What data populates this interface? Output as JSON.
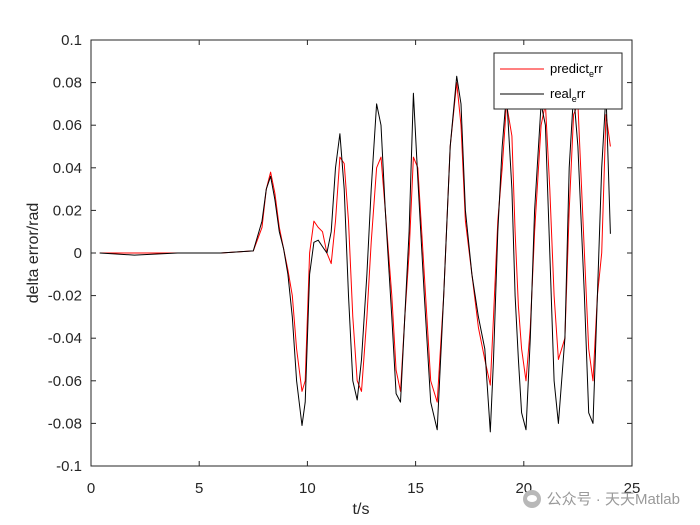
{
  "chart_data": {
    "type": "line",
    "xlabel": "t/s",
    "ylabel": "delta error/rad",
    "xlim": [
      0,
      25
    ],
    "ylim": [
      -0.1,
      0.1
    ],
    "xticks": [
      0,
      5,
      10,
      15,
      20,
      25
    ],
    "yticks": [
      -0.1,
      -0.08,
      -0.06,
      -0.04,
      -0.02,
      0,
      0.02,
      0.04,
      0.06,
      0.08,
      0.1
    ],
    "grid": false,
    "legend_position": "top-right",
    "series": [
      {
        "name_main": "predict",
        "name_sub": "e",
        "name_tail": "rr",
        "color": "#ff0000",
        "x": [
          0.4,
          2,
          4,
          6,
          7.5,
          7.9,
          8.1,
          8.3,
          8.5,
          8.7,
          8.9,
          9.1,
          9.3,
          9.5,
          9.75,
          9.9,
          10.1,
          10.3,
          10.5,
          10.7,
          10.9,
          11.1,
          11.3,
          11.5,
          11.7,
          11.9,
          12.1,
          12.3,
          12.5,
          12.75,
          12.95,
          13.2,
          13.4,
          13.6,
          13.9,
          14.1,
          14.3,
          14.5,
          14.7,
          14.9,
          15.1,
          15.4,
          15.7,
          16.0,
          16.3,
          16.6,
          16.9,
          17.1,
          17.3,
          17.6,
          17.9,
          18.2,
          18.45,
          18.6,
          18.8,
          19.0,
          19.2,
          19.45,
          19.6,
          19.75,
          19.9,
          20.1,
          20.3,
          20.5,
          20.8,
          21.0,
          21.2,
          21.4,
          21.6,
          21.9,
          22.1,
          22.3,
          22.5,
          22.8,
          23.0,
          23.2,
          23.4,
          23.6,
          23.8,
          24.0
        ],
        "y": [
          0.0,
          0.0,
          0.0,
          0.0,
          0.001,
          0.012,
          0.03,
          0.038,
          0.028,
          0.012,
          0.002,
          -0.008,
          -0.02,
          -0.045,
          -0.065,
          -0.06,
          0.0,
          0.015,
          0.012,
          0.01,
          0.0,
          -0.005,
          0.015,
          0.045,
          0.042,
          0.015,
          -0.03,
          -0.06,
          -0.065,
          -0.03,
          0.005,
          0.04,
          0.045,
          0.02,
          -0.02,
          -0.055,
          -0.065,
          -0.03,
          0.0,
          0.045,
          0.04,
          -0.01,
          -0.06,
          -0.07,
          -0.02,
          0.05,
          0.08,
          0.06,
          0.015,
          -0.01,
          -0.035,
          -0.05,
          -0.062,
          -0.03,
          0.015,
          0.04,
          0.07,
          0.055,
          0.01,
          -0.025,
          -0.045,
          -0.06,
          -0.035,
          0.01,
          0.06,
          0.07,
          0.03,
          -0.02,
          -0.05,
          -0.04,
          0.02,
          0.065,
          0.07,
          0.0,
          -0.045,
          -0.06,
          -0.02,
          0.0,
          0.065,
          0.05
        ]
      },
      {
        "name_main": "real",
        "name_sub": "e",
        "name_tail": "rr",
        "color": "#000000",
        "x": [
          0.4,
          2,
          4,
          6,
          7.5,
          7.9,
          8.1,
          8.3,
          8.5,
          8.7,
          8.9,
          9.1,
          9.3,
          9.5,
          9.75,
          9.9,
          10.1,
          10.3,
          10.5,
          10.7,
          10.9,
          11.1,
          11.3,
          11.5,
          11.7,
          11.9,
          12.1,
          12.3,
          12.5,
          12.75,
          12.95,
          13.2,
          13.4,
          13.6,
          13.9,
          14.1,
          14.3,
          14.5,
          14.7,
          14.9,
          15.1,
          15.4,
          15.7,
          16.0,
          16.3,
          16.6,
          16.9,
          17.1,
          17.3,
          17.6,
          17.9,
          18.2,
          18.45,
          18.6,
          18.8,
          19.0,
          19.2,
          19.45,
          19.6,
          19.75,
          19.9,
          20.1,
          20.3,
          20.5,
          20.8,
          21.0,
          21.2,
          21.4,
          21.6,
          21.9,
          22.1,
          22.3,
          22.5,
          22.8,
          23.0,
          23.2,
          23.4,
          23.6,
          23.8,
          24.0
        ],
        "y": [
          0.0,
          -0.001,
          0.0,
          0.0,
          0.001,
          0.015,
          0.03,
          0.036,
          0.025,
          0.01,
          0.002,
          -0.01,
          -0.03,
          -0.06,
          -0.081,
          -0.07,
          -0.01,
          0.005,
          0.006,
          0.003,
          0.0,
          0.01,
          0.04,
          0.056,
          0.03,
          -0.02,
          -0.06,
          -0.069,
          -0.05,
          -0.01,
          0.03,
          0.07,
          0.06,
          0.02,
          -0.03,
          -0.066,
          -0.07,
          -0.03,
          0.01,
          0.075,
          0.035,
          -0.02,
          -0.07,
          -0.083,
          -0.02,
          0.05,
          0.083,
          0.07,
          0.02,
          -0.01,
          -0.03,
          -0.045,
          -0.084,
          -0.05,
          0.01,
          0.05,
          0.075,
          0.03,
          -0.02,
          -0.05,
          -0.075,
          -0.083,
          -0.04,
          0.02,
          0.07,
          0.06,
          0.0,
          -0.06,
          -0.08,
          -0.04,
          0.04,
          0.075,
          0.05,
          -0.02,
          -0.075,
          -0.08,
          -0.02,
          0.04,
          0.075,
          0.009
        ]
      }
    ]
  },
  "watermark": "公众号 · 天天Matlab"
}
